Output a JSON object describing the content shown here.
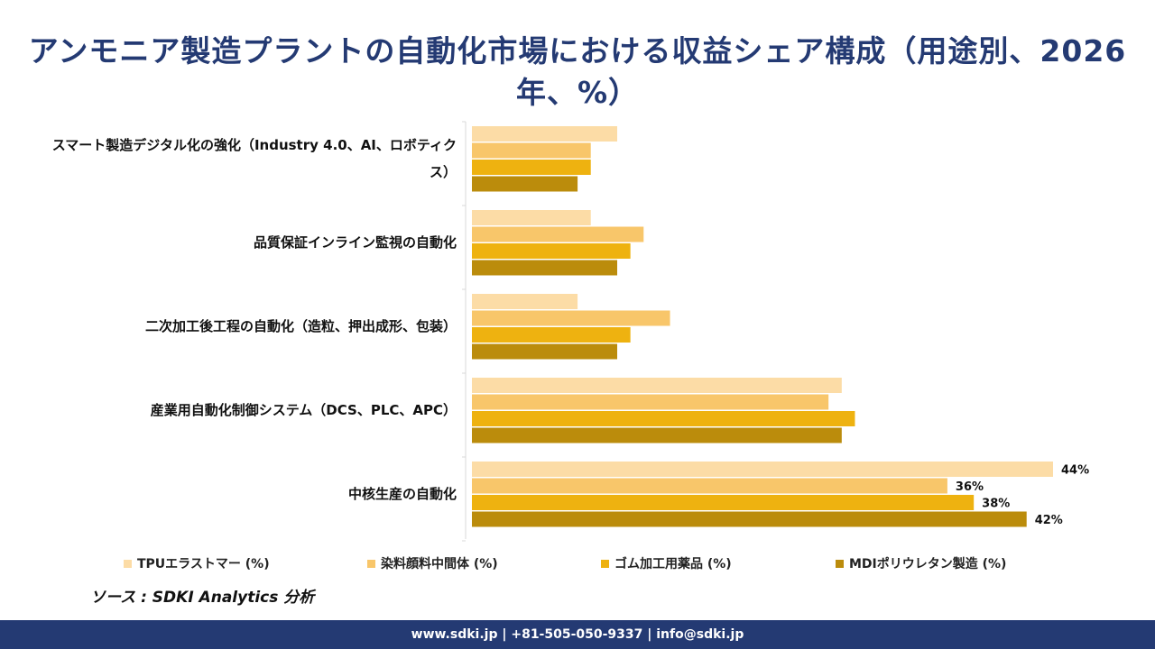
{
  "title": "アンモニア製造プラントの自動化市場における収益シェア構成（用途別、2026年、%）",
  "chart_data": {
    "type": "bar",
    "orientation": "horizontal",
    "categories": [
      "スマート製造デジタル化の強化（Industry 4.0、AI、ロボティクス）",
      "品質保証インライン監視の自動化",
      "二次加工後工程の自動化（造粒、押出成形、包装）",
      "産業用自動化制御システム（DCS、PLC、APC）",
      "中核生産の自動化"
    ],
    "series": [
      {
        "name": "TPUエラストマー (%)",
        "color": "#fcdca6",
        "values": [
          11,
          9,
          8,
          28,
          44
        ]
      },
      {
        "name": "染料顔料中間体 (%)",
        "color": "#f8c66a",
        "values": [
          9,
          13,
          15,
          27,
          36
        ]
      },
      {
        "name": "ゴム加工用薬品 (%)",
        "color": "#eeb210",
        "values": [
          9,
          12,
          12,
          29,
          38
        ]
      },
      {
        "name": "MDIポリウレタン製造 (%)",
        "color": "#bb8c0c",
        "values": [
          8,
          11,
          11,
          28,
          42
        ]
      }
    ],
    "data_labels": [
      "44%",
      "36%",
      "38%",
      "42%"
    ],
    "xlim": [
      0,
      44
    ],
    "grid": false,
    "legend_position": "bottom"
  },
  "source": "ソース : SDKI Analytics 分析",
  "footer": "www.sdki.jp | +81-505-050-9337 | info@sdki.jp"
}
